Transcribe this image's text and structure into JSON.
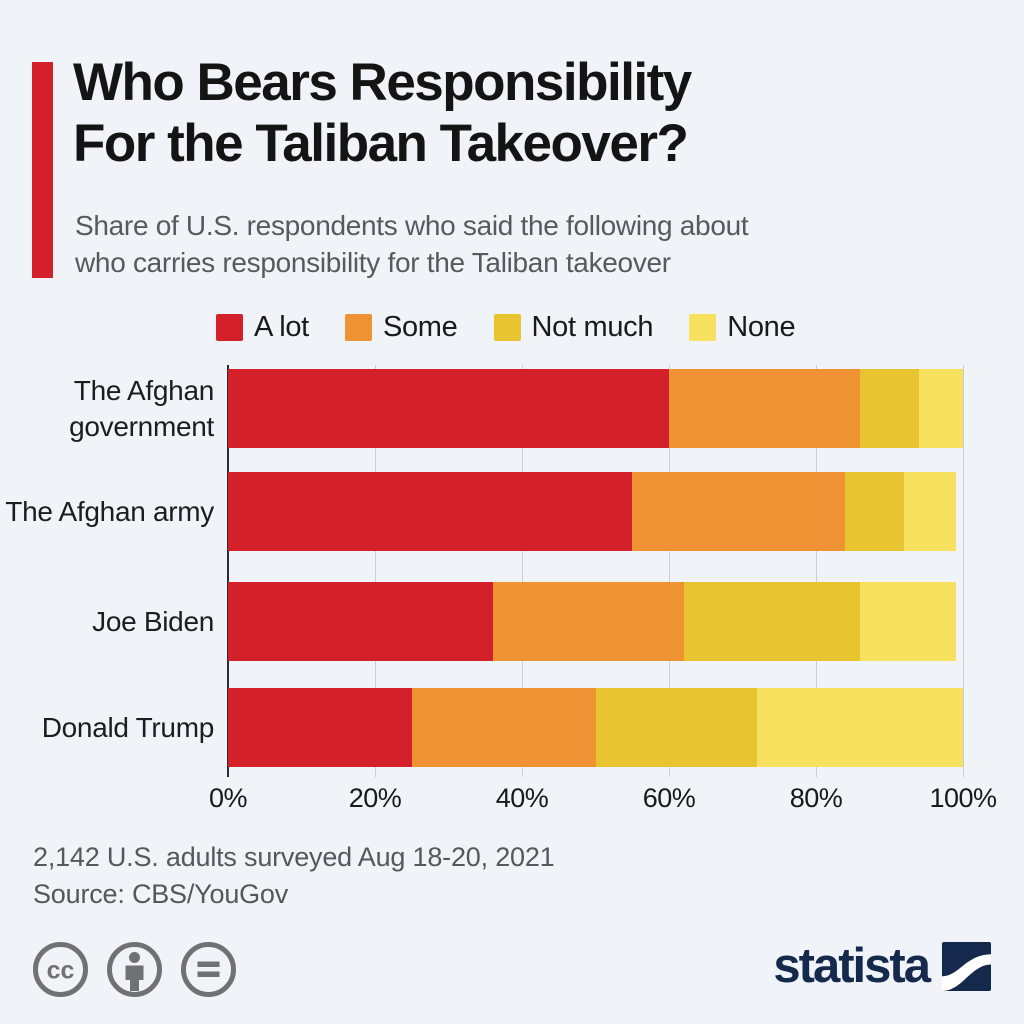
{
  "title": {
    "line1": "Who Bears Responsibility",
    "line2": "For the Taliban Takeover?"
  },
  "subtitle": {
    "line1": "Share of U.S. respondents who said the following about",
    "line2": "who carries responsibility for the Taliban takeover"
  },
  "chart_data": {
    "type": "bar",
    "orientation": "horizontal",
    "stacked": true,
    "categories": [
      "The Afghan government",
      "The Afghan army",
      "Joe Biden",
      "Donald Trump"
    ],
    "series": [
      {
        "name": "A lot",
        "color": "#d4202a",
        "values": [
          60,
          55,
          36,
          25
        ]
      },
      {
        "name": "Some",
        "color": "#ef9233",
        "values": [
          26,
          29,
          26,
          25
        ]
      },
      {
        "name": "Not much",
        "color": "#e9c431",
        "values": [
          8,
          8,
          24,
          22
        ]
      },
      {
        "name": "None",
        "color": "#f9e160",
        "values": [
          6,
          7,
          13,
          28
        ]
      }
    ],
    "x_ticks": [
      "0%",
      "20%",
      "40%",
      "60%",
      "80%",
      "100%"
    ],
    "xlim": [
      0,
      100
    ],
    "grid": true,
    "legend_position": "top"
  },
  "footer": {
    "note": "2,142 U.S. adults surveyed Aug 18-20, 2021",
    "source": "Source: CBS/YouGov"
  },
  "branding": {
    "logo_text": "statista",
    "icons": [
      "creative-commons-icon",
      "attribution-icon",
      "no-derivatives-icon"
    ]
  },
  "colors": {
    "background": "#f0f3f7",
    "accent_red": "#d4202a",
    "navy": "#14294b",
    "gridline": "#c9d0d7",
    "axis": "#2a2d33",
    "icon_gray": "#6f7173"
  }
}
